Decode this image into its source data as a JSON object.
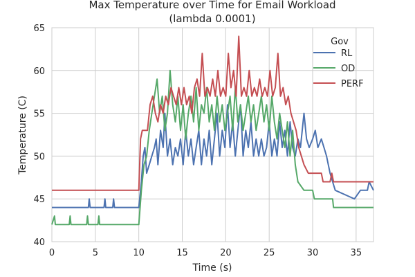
{
  "chart_data": {
    "type": "line",
    "title_line1": "Max Temperature over Time for Email Workload",
    "title_line2": "(lambda 0.0001)",
    "xlabel": "Time (s)",
    "ylabel": "Temperature (C)",
    "xlim": [
      0,
      37
    ],
    "ylim": [
      40,
      65
    ],
    "xticks": [
      "0",
      "5",
      "10",
      "15",
      "20",
      "25",
      "30",
      "35"
    ],
    "yticks": [
      "40",
      "45",
      "50",
      "55",
      "60",
      "65"
    ],
    "grid": true,
    "legend": {
      "title": "Gov",
      "placement": "top-right"
    },
    "series": [
      {
        "name": "RL",
        "color": "#4c72b0",
        "points": [
          [
            0,
            44
          ],
          [
            4.2,
            44
          ],
          [
            4.3,
            45
          ],
          [
            4.4,
            44
          ],
          [
            6,
            44
          ],
          [
            6.1,
            45
          ],
          [
            6.2,
            44
          ],
          [
            7,
            44
          ],
          [
            7.1,
            45
          ],
          [
            7.2,
            44
          ],
          [
            10,
            44
          ],
          [
            10.3,
            47
          ],
          [
            10.5,
            50
          ],
          [
            10.7,
            51
          ],
          [
            10.9,
            48
          ],
          [
            11.2,
            49
          ],
          [
            11.5,
            50
          ],
          [
            11.8,
            51
          ],
          [
            12,
            52
          ],
          [
            12.2,
            49
          ],
          [
            12.5,
            53
          ],
          [
            12.8,
            51
          ],
          [
            13,
            55
          ],
          [
            13.3,
            50
          ],
          [
            13.6,
            52
          ],
          [
            13.9,
            49
          ],
          [
            14.2,
            51
          ],
          [
            14.5,
            50
          ],
          [
            14.8,
            52
          ],
          [
            15.1,
            49
          ],
          [
            15.4,
            53
          ],
          [
            15.7,
            50
          ],
          [
            16,
            52
          ],
          [
            16.3,
            49
          ],
          [
            16.6,
            51
          ],
          [
            16.9,
            53
          ],
          [
            17.2,
            49
          ],
          [
            17.5,
            52
          ],
          [
            17.8,
            50
          ],
          [
            18.1,
            53
          ],
          [
            18.4,
            49
          ],
          [
            18.7,
            52
          ],
          [
            19,
            55
          ],
          [
            19.3,
            50
          ],
          [
            19.6,
            53
          ],
          [
            19.9,
            51
          ],
          [
            20.2,
            56
          ],
          [
            20.5,
            51
          ],
          [
            20.8,
            54
          ],
          [
            21.1,
            50
          ],
          [
            21.4,
            53
          ],
          [
            21.7,
            56
          ],
          [
            22,
            50
          ],
          [
            22.3,
            53
          ],
          [
            22.6,
            51
          ],
          [
            22.9,
            54
          ],
          [
            23.2,
            50
          ],
          [
            23.5,
            52
          ],
          [
            23.8,
            50
          ],
          [
            24.1,
            52
          ],
          [
            24.4,
            50
          ],
          [
            24.7,
            51
          ],
          [
            25,
            54
          ],
          [
            25.3,
            50
          ],
          [
            25.6,
            52
          ],
          [
            25.9,
            50
          ],
          [
            26.2,
            54
          ],
          [
            26.5,
            51
          ],
          [
            26.8,
            53
          ],
          [
            27.1,
            50
          ],
          [
            27.4,
            54
          ],
          [
            27.7,
            51
          ],
          [
            28,
            50
          ],
          [
            28.3,
            52
          ],
          [
            28.6,
            51
          ],
          [
            29,
            55
          ],
          [
            29.3,
            52
          ],
          [
            29.6,
            51
          ],
          [
            30,
            52
          ],
          [
            30.3,
            53
          ],
          [
            30.6,
            51
          ],
          [
            31,
            52
          ],
          [
            31.3,
            51
          ],
          [
            31.6,
            50
          ],
          [
            32,
            48
          ],
          [
            32.3,
            47
          ],
          [
            32.6,
            46
          ],
          [
            34.8,
            45
          ],
          [
            35.5,
            46
          ],
          [
            36.3,
            46
          ],
          [
            36.5,
            47
          ],
          [
            37,
            46
          ]
        ]
      },
      {
        "name": "OD",
        "color": "#55a868",
        "points": [
          [
            0,
            42
          ],
          [
            0.3,
            43
          ],
          [
            0.4,
            42
          ],
          [
            2,
            42
          ],
          [
            2.1,
            43
          ],
          [
            2.2,
            42
          ],
          [
            4,
            42
          ],
          [
            4.1,
            43
          ],
          [
            4.2,
            42
          ],
          [
            5.3,
            42
          ],
          [
            5.4,
            43
          ],
          [
            5.5,
            42
          ],
          [
            10,
            42
          ],
          [
            10.3,
            46
          ],
          [
            10.6,
            49
          ],
          [
            10.9,
            50
          ],
          [
            11.2,
            53
          ],
          [
            11.5,
            55
          ],
          [
            11.8,
            57
          ],
          [
            12.1,
            59
          ],
          [
            12.4,
            55
          ],
          [
            12.7,
            57
          ],
          [
            13,
            53
          ],
          [
            13.3,
            55
          ],
          [
            13.6,
            60
          ],
          [
            13.9,
            56
          ],
          [
            14.2,
            54
          ],
          [
            14.5,
            57
          ],
          [
            14.8,
            53
          ],
          [
            15.1,
            56
          ],
          [
            15.4,
            52
          ],
          [
            15.7,
            55
          ],
          [
            16,
            57
          ],
          [
            16.3,
            54
          ],
          [
            16.6,
            58
          ],
          [
            16.9,
            53
          ],
          [
            17.2,
            56
          ],
          [
            17.5,
            55
          ],
          [
            17.8,
            58
          ],
          [
            18.1,
            54
          ],
          [
            18.4,
            56
          ],
          [
            18.7,
            53
          ],
          [
            19,
            57
          ],
          [
            19.3,
            54
          ],
          [
            19.6,
            56
          ],
          [
            19.9,
            53
          ],
          [
            20.2,
            55
          ],
          [
            20.5,
            57
          ],
          [
            20.8,
            53
          ],
          [
            21.1,
            58
          ],
          [
            21.4,
            54
          ],
          [
            21.7,
            56
          ],
          [
            22,
            53
          ],
          [
            22.3,
            55
          ],
          [
            22.6,
            57
          ],
          [
            22.9,
            54
          ],
          [
            23.2,
            56
          ],
          [
            23.5,
            53
          ],
          [
            23.8,
            55
          ],
          [
            24.1,
            57
          ],
          [
            24.4,
            54
          ],
          [
            24.7,
            56
          ],
          [
            25,
            53
          ],
          [
            25.3,
            57
          ],
          [
            25.6,
            54
          ],
          [
            25.9,
            52
          ],
          [
            26.2,
            55
          ],
          [
            26.5,
            53
          ],
          [
            26.8,
            51
          ],
          [
            27.1,
            54
          ],
          [
            27.4,
            50
          ],
          [
            27.7,
            53
          ],
          [
            28,
            49
          ],
          [
            28.3,
            47
          ],
          [
            29,
            46
          ],
          [
            30,
            46
          ],
          [
            30.2,
            45
          ],
          [
            32.3,
            45
          ],
          [
            32.4,
            44
          ],
          [
            37,
            44
          ]
        ]
      },
      {
        "name": "PERF",
        "color": "#c44e52",
        "points": [
          [
            0,
            46
          ],
          [
            10,
            46
          ],
          [
            10.2,
            52
          ],
          [
            10.4,
            53
          ],
          [
            11,
            53
          ],
          [
            11.3,
            56
          ],
          [
            11.6,
            57
          ],
          [
            11.9,
            55
          ],
          [
            12.2,
            54
          ],
          [
            12.5,
            56
          ],
          [
            12.8,
            55
          ],
          [
            13.1,
            57
          ],
          [
            13.4,
            56
          ],
          [
            13.7,
            58
          ],
          [
            14,
            57
          ],
          [
            14.3,
            56
          ],
          [
            14.6,
            58
          ],
          [
            14.9,
            56
          ],
          [
            15.2,
            58
          ],
          [
            15.5,
            56
          ],
          [
            15.8,
            57
          ],
          [
            16.1,
            55
          ],
          [
            16.4,
            58
          ],
          [
            16.7,
            59
          ],
          [
            17,
            57
          ],
          [
            17.3,
            62
          ],
          [
            17.6,
            57
          ],
          [
            17.9,
            58
          ],
          [
            18.2,
            57
          ],
          [
            18.5,
            59
          ],
          [
            18.8,
            57
          ],
          [
            19.1,
            60
          ],
          [
            19.4,
            57
          ],
          [
            19.7,
            58
          ],
          [
            20,
            57
          ],
          [
            20.3,
            62
          ],
          [
            20.6,
            58
          ],
          [
            20.9,
            60
          ],
          [
            21.2,
            57
          ],
          [
            21.5,
            64
          ],
          [
            21.8,
            57
          ],
          [
            22.1,
            58
          ],
          [
            22.4,
            57
          ],
          [
            22.7,
            60
          ],
          [
            23,
            57
          ],
          [
            23.3,
            58
          ],
          [
            23.6,
            57
          ],
          [
            23.9,
            59
          ],
          [
            24.2,
            57
          ],
          [
            24.5,
            58
          ],
          [
            24.8,
            57
          ],
          [
            25.1,
            60
          ],
          [
            25.4,
            57
          ],
          [
            25.7,
            58
          ],
          [
            26,
            62
          ],
          [
            26.3,
            57
          ],
          [
            26.6,
            58
          ],
          [
            26.9,
            56
          ],
          [
            27.2,
            57
          ],
          [
            27.5,
            55
          ],
          [
            27.8,
            54
          ],
          [
            28.1,
            53
          ],
          [
            28.4,
            51
          ],
          [
            28.7,
            50
          ],
          [
            29,
            49
          ],
          [
            29.5,
            48
          ],
          [
            31,
            48
          ],
          [
            31.2,
            47
          ],
          [
            32,
            47
          ],
          [
            32.2,
            48
          ],
          [
            32.4,
            47
          ],
          [
            37,
            47
          ]
        ]
      }
    ]
  }
}
